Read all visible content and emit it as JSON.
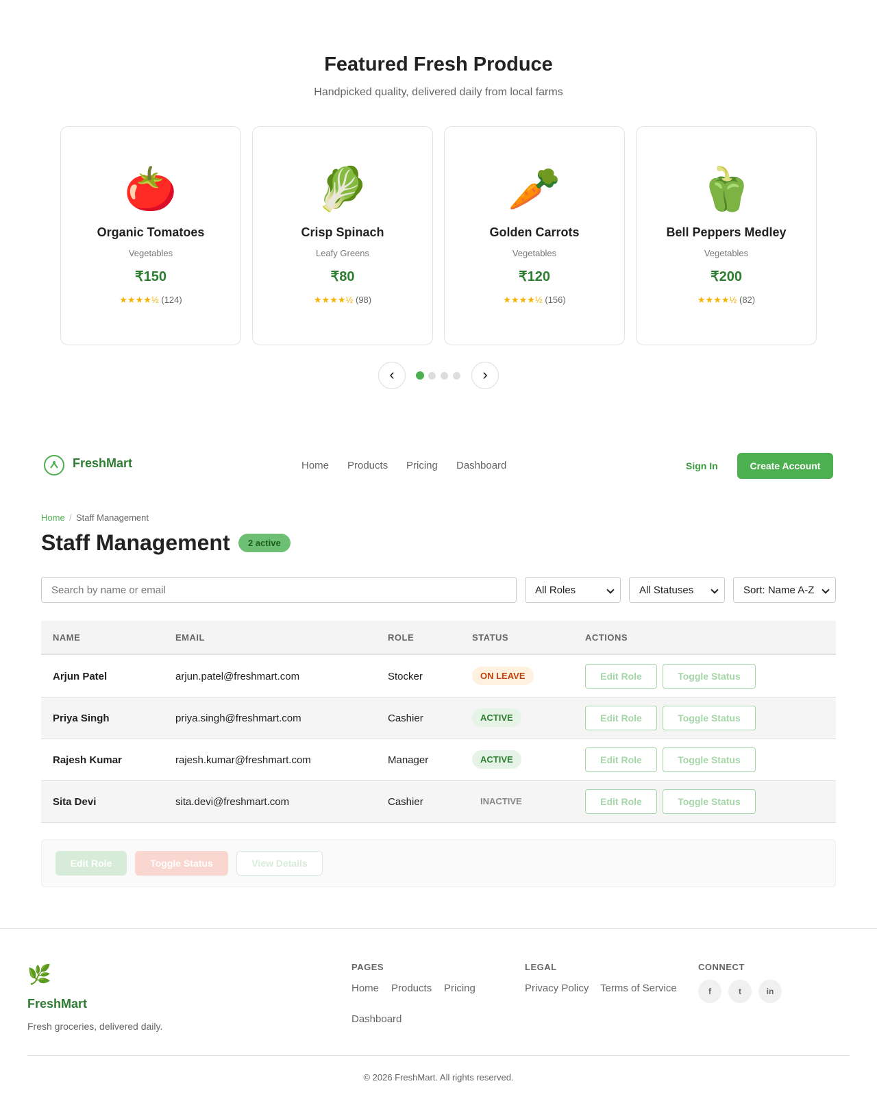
{
  "featured": {
    "title": "Featured Fresh Produce",
    "subtitle": "Handpicked quality, delivered daily from local farms",
    "products": [
      {
        "emoji": "🍅",
        "name": "Organic Tomatoes",
        "category": "Vegetables",
        "price": "₹150",
        "stars": "★★★★½",
        "reviews": "(124)"
      },
      {
        "emoji": "🥬",
        "name": "Crisp Spinach",
        "category": "Leafy Greens",
        "price": "₹80",
        "stars": "★★★★½",
        "reviews": "(98)"
      },
      {
        "emoji": "🥕",
        "name": "Golden Carrots",
        "category": "Vegetables",
        "price": "₹120",
        "stars": "★★★★½",
        "reviews": "(156)"
      },
      {
        "emoji": "🫑",
        "name": "Bell Peppers Medley",
        "category": "Vegetables",
        "price": "₹200",
        "stars": "★★★★½",
        "reviews": "(82)"
      }
    ],
    "prev": "‹",
    "next": "›"
  },
  "nav": {
    "brand": "FreshMart",
    "links": [
      "Home",
      "Products",
      "Pricing",
      "Dashboard"
    ],
    "sign_in": "Sign In",
    "create_account": "Create Account"
  },
  "breadcrumb": {
    "items": [
      "Home",
      "Staff Management"
    ],
    "separator": "/"
  },
  "page": {
    "title": "Staff Management",
    "badge": "2 active"
  },
  "filters": {
    "search_placeholder": "Search by name or email",
    "roles": "All Roles",
    "statuses": "All Statuses",
    "sort": "Sort: Name A-Z"
  },
  "table": {
    "headers": [
      "NAME",
      "EMAIL",
      "ROLE",
      "STATUS",
      "ACTIONS"
    ],
    "rows": [
      {
        "name": "Arjun Patel",
        "email": "arjun.patel@freshmart.com",
        "role": "Stocker",
        "status": "ON LEAVE",
        "status_color": "#c2410c",
        "status_bg": "#fff1e0"
      },
      {
        "name": "Priya Singh",
        "email": "priya.singh@freshmart.com",
        "role": "Cashier",
        "status": "ACTIVE",
        "status_color": "#2e7d32",
        "status_bg": "#e6f4e7"
      },
      {
        "name": "Rajesh Kumar",
        "email": "rajesh.kumar@freshmart.com",
        "role": "Manager",
        "status": "ACTIVE",
        "status_color": "#2e7d32",
        "status_bg": "#e6f4e7"
      },
      {
        "name": "Sita Devi",
        "email": "sita.devi@freshmart.com",
        "role": "Cashier",
        "status": "INACTIVE",
        "status_color": "#888888",
        "status_bg": "#f5f5f5"
      }
    ],
    "actions": [
      "Edit Role",
      "Toggle Status"
    ]
  },
  "bulk_actions": [
    "Edit Role",
    "Toggle Status",
    "View Details"
  ],
  "footer": {
    "logo": "🌿",
    "brand": "FreshMart",
    "tagline": "Fresh groceries, delivered daily.",
    "columns": [
      {
        "title": "PAGES",
        "links": [
          "Home",
          "Products",
          "Pricing",
          "Dashboard"
        ]
      },
      {
        "title": "LEGAL",
        "links": [
          "Privacy Policy",
          "Terms of Service"
        ]
      }
    ],
    "connect": {
      "title": "CONNECT",
      "icons": [
        "f",
        "t",
        "in"
      ]
    },
    "copyright": "© 2026 FreshMart. All rights reserved."
  }
}
